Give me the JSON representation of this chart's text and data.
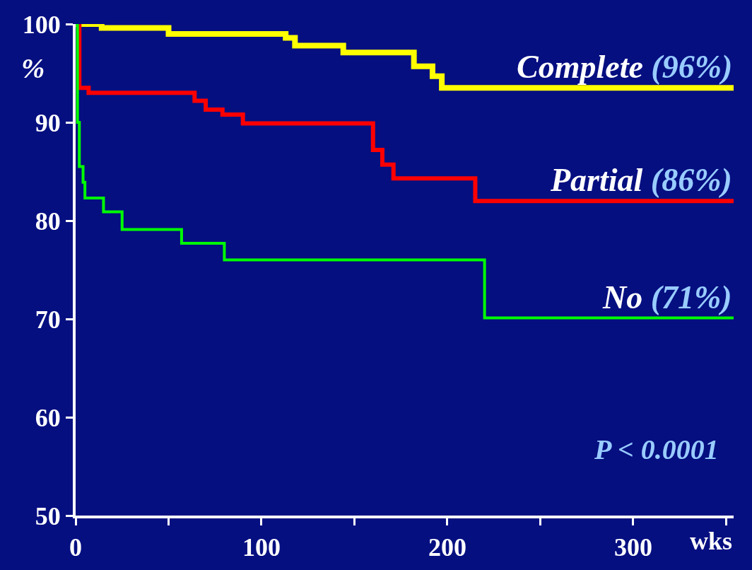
{
  "chart_data": {
    "type": "step",
    "xlabel": "wks",
    "ylabel": "%",
    "xlim": [
      0,
      354
    ],
    "ylim": [
      50,
      100
    ],
    "xticks": [
      0,
      {
        "value": 50,
        "label": null
      },
      100,
      {
        "value": 150,
        "label": null
      },
      200,
      {
        "value": 250,
        "label": null
      },
      300,
      {
        "value": 350,
        "label": null
      }
    ],
    "yticks": [
      50,
      60,
      70,
      80,
      90,
      100
    ],
    "grid": false,
    "legend": false,
    "marker": "none",
    "line_style": "solid",
    "series": [
      {
        "name": "Complete",
        "color": "#ffff00",
        "x": [
          0,
          10,
          14,
          50,
          113,
          118,
          144,
          182,
          192,
          197,
          354
        ],
        "values": [
          100,
          100,
          99.6,
          99.0,
          98.6,
          97.8,
          97.1,
          95.7,
          94.7,
          93.5,
          93.5
        ]
      },
      {
        "name": "Partial",
        "color": "#ff0000",
        "x": [
          0,
          2,
          7,
          64,
          70,
          79,
          90,
          160,
          162,
          165,
          171,
          215,
          354
        ],
        "values": [
          100,
          93.5,
          93.0,
          92.2,
          91.3,
          90.8,
          89.9,
          87.2,
          87.2,
          85.7,
          84.3,
          82.0,
          82.0
        ]
      },
      {
        "name": "No",
        "color": "#00ff00",
        "x": [
          0,
          1,
          2,
          4,
          5,
          15,
          25,
          57,
          80,
          220,
          354
        ],
        "values": [
          100,
          90,
          85.5,
          83.9,
          82.3,
          80.9,
          79.1,
          77.7,
          76.0,
          70.1,
          70.1
        ]
      }
    ],
    "annotations": [
      "(96%)",
      "(86%)",
      "(71%)",
      "P < 0.0001"
    ]
  }
}
